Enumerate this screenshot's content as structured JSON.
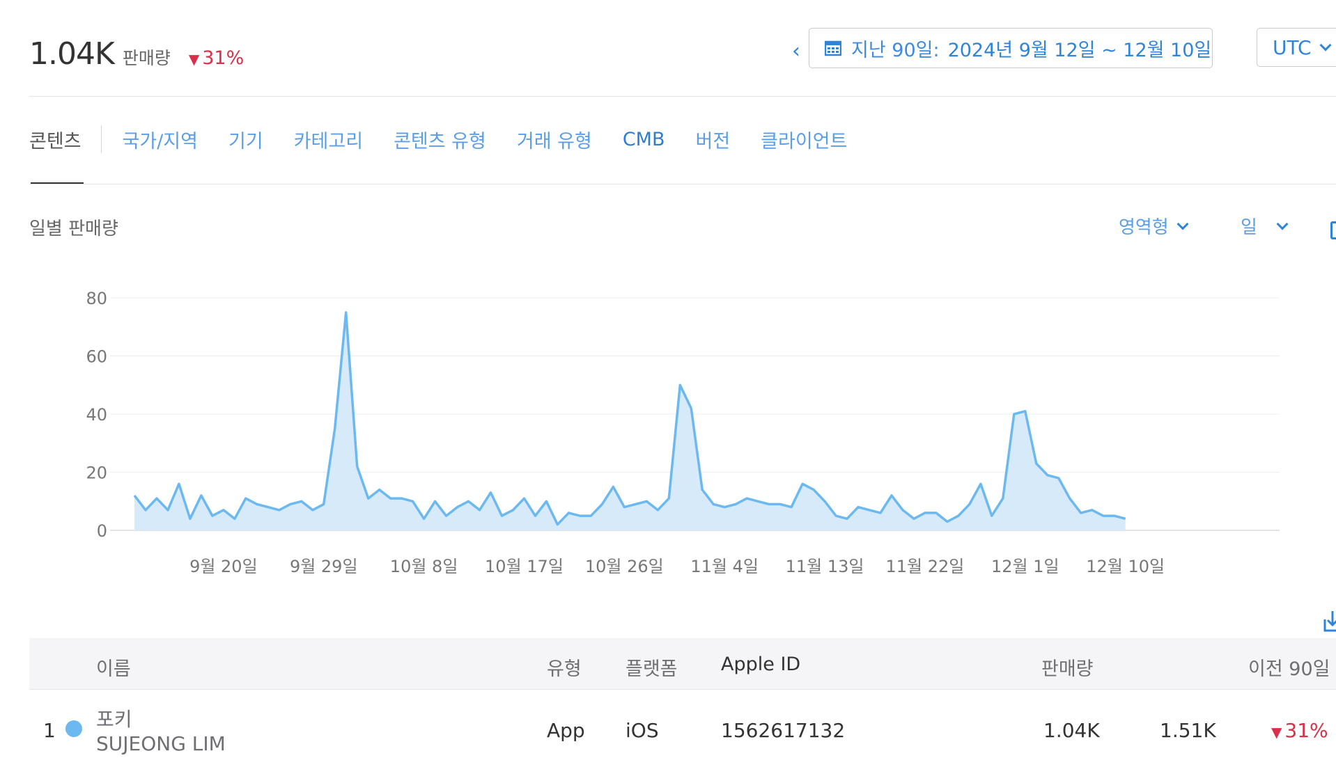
{
  "summary": {
    "value": "1.04K",
    "unit": "판매량",
    "delta": "31%",
    "delta_color": "#d9304a"
  },
  "date_range": {
    "prefix_icon": "calendar-icon",
    "label": "지난 90일:",
    "range": "2024년 9월 12일 ~ 12월 10일"
  },
  "timezone": {
    "label": "UTC"
  },
  "tabs": [
    "콘텐츠",
    "국가/지역",
    "기기",
    "카테고리",
    "콘텐츠 유형",
    "거래 유형",
    "CMB",
    "버전",
    "클라이언트"
  ],
  "tabs_active_index": 0,
  "chart_header": {
    "title": "일별 판매량",
    "type_select": "영역형",
    "period_select": "일"
  },
  "chart_data": {
    "type": "area",
    "title": "일별 판매량",
    "xlabel": "",
    "ylabel": "",
    "ylim": [
      0,
      80
    ],
    "yticks": [
      0,
      20,
      40,
      60,
      80
    ],
    "x_tick_labels": [
      "9월 20일",
      "9월 29일",
      "10월 8일",
      "10월 17일",
      "10월 26일",
      "11월 4일",
      "11월 13일",
      "11월 22일",
      "12월 1일",
      "12월 10일"
    ],
    "grid": true,
    "start": "9월 12일",
    "series": [
      {
        "name": "포키",
        "color": "#6cb8f0",
        "values": [
          12,
          7,
          11,
          7,
          16,
          4,
          12,
          5,
          7,
          4,
          11,
          9,
          8,
          7,
          9,
          10,
          7,
          9,
          35,
          75,
          22,
          11,
          14,
          11,
          11,
          10,
          4,
          10,
          5,
          8,
          10,
          7,
          13,
          5,
          7,
          11,
          5,
          10,
          2,
          6,
          5,
          5,
          9,
          15,
          8,
          9,
          10,
          7,
          11,
          50,
          42,
          14,
          9,
          8,
          9,
          11,
          10,
          9,
          9,
          8,
          16,
          14,
          10,
          5,
          4,
          8,
          7,
          6,
          12,
          7,
          4,
          6,
          6,
          3,
          5,
          9,
          16,
          5,
          11,
          40,
          41,
          23,
          19,
          18,
          11,
          6,
          7,
          5,
          5,
          4
        ]
      }
    ]
  },
  "table": {
    "headers": {
      "name": "이름",
      "type": "유형",
      "platform": "플랫폼",
      "apple_id": "Apple ID",
      "sales": "판매량",
      "prev": "이전 90일"
    },
    "rows": [
      {
        "rank": "1",
        "name": "포키",
        "developer": "SUJEONG LIM",
        "type": "App",
        "platform": "iOS",
        "apple_id": "1562617132",
        "sales": "1.04K",
        "prev": "1.51K",
        "delta": "31%"
      }
    ]
  }
}
